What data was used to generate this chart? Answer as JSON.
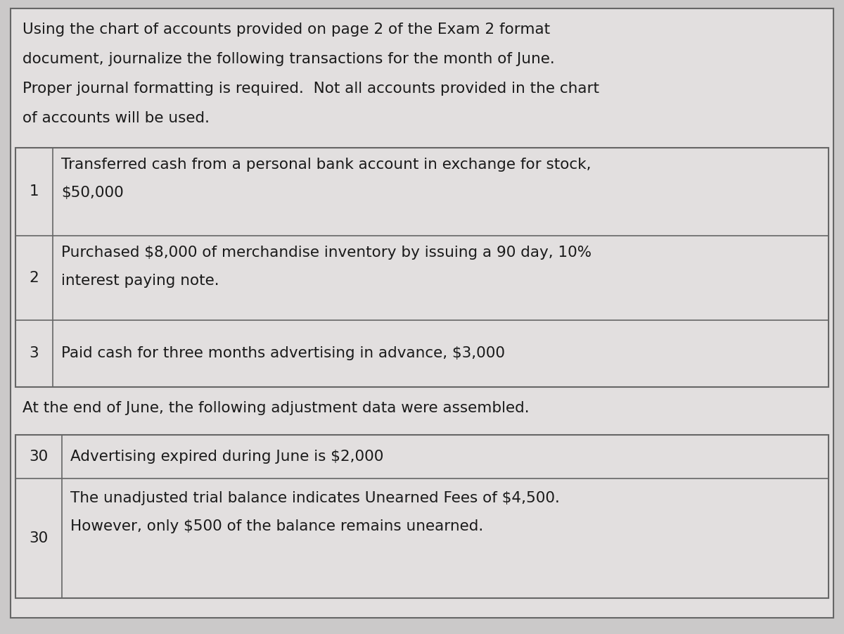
{
  "bg_color": "#cbc9c9",
  "card_color": "#e2dfdf",
  "border_color": "#666666",
  "text_color": "#1a1a1a",
  "intro_text_lines": [
    "Using the chart of accounts provided on page 2 of the Exam 2 format",
    "document, journalize the following transactions for the month of June.",
    "Proper journal formatting is required.  Not all accounts provided in the chart",
    "of accounts will be used."
  ],
  "table1_rows": [
    {
      "num": "1",
      "text_lines": [
        "Transferred cash from a personal bank account in exchange for stock,",
        "$50,000"
      ]
    },
    {
      "num": "2",
      "text_lines": [
        "Purchased $8,000 of merchandise inventory by issuing a 90 day, 10%",
        "interest paying note."
      ]
    },
    {
      "num": "3",
      "text_lines": [
        "Paid cash for three months advertising in advance, $3,000"
      ]
    }
  ],
  "adj_text": "At the end of June, the following adjustment data were assembled.",
  "table2_rows": [
    {
      "num": "30",
      "text_lines": [
        "Advertising expired during June is $2,000"
      ]
    },
    {
      "num": "30",
      "text_lines": [
        "The unadjusted trial balance indicates Unearned Fees of $4,500.",
        "However, only $500 of the balance remains unearned."
      ]
    }
  ],
  "font_size": 15.5,
  "font_family": "DejaVu Sans"
}
